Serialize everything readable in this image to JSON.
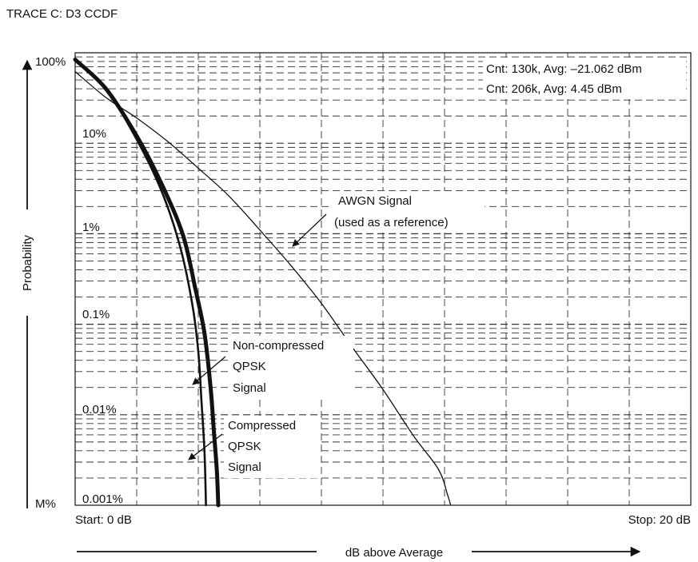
{
  "header": {
    "trace_title": "TRACE C: D3 CCDF"
  },
  "chart_data": {
    "type": "line",
    "title": "TRACE C: D3 CCDF",
    "xlabel": "dB above Average",
    "ylabel": "Probability",
    "x_unit": "dB",
    "xlim": [
      0,
      20
    ],
    "ylim": [
      0.001,
      100
    ],
    "y_scale": "log",
    "x_grid_divisions": 10,
    "grid": true,
    "y_tick_labels": [
      {
        "value": 100,
        "label": "100%"
      },
      {
        "value": 10,
        "label": "10%"
      },
      {
        "value": 1,
        "label": "1%"
      },
      {
        "value": 0.1,
        "label": "0.1%"
      },
      {
        "value": 0.01,
        "label": "0.01%"
      },
      {
        "value": 0.001,
        "label": "0.001%"
      }
    ],
    "marker_label": "M%",
    "start_label": "Start: 0 dB",
    "stop_label": "Stop: 20 dB",
    "readouts": [
      "Cnt: 130k, Avg: –21.062 dBm",
      "Cnt: 206k, Avg:  4.45 dBm"
    ],
    "series": [
      {
        "name": "AWGN Signal (used as a reference)",
        "weight": "thin",
        "x": [
          0,
          1,
          2,
          3,
          4,
          5,
          6,
          7,
          8,
          9,
          10,
          11,
          11.8,
          12.1,
          12.2
        ],
        "y": [
          62,
          32,
          19,
          10.5,
          5.3,
          2.6,
          1.1,
          0.45,
          0.17,
          0.056,
          0.019,
          0.0058,
          0.0025,
          0.0013,
          0.001
        ]
      },
      {
        "name": "Non-compressed QPSK Signal",
        "weight": "bold",
        "x": [
          0,
          1,
          2,
          2.8,
          3.5,
          3.9,
          4.2,
          4.4,
          4.5,
          4.6,
          4.65
        ],
        "y": [
          84,
          40,
          12,
          3.6,
          0.97,
          0.25,
          0.08,
          0.02,
          0.007,
          0.0025,
          0.001
        ]
      },
      {
        "name": "Compressed QPSK Signal",
        "weight": "medium",
        "x": [
          0,
          1,
          2,
          2.8,
          3.4,
          3.8,
          4.0,
          4.1,
          4.2,
          4.25
        ],
        "y": [
          84,
          40,
          11,
          3.0,
          0.74,
          0.17,
          0.05,
          0.015,
          0.004,
          0.001
        ]
      }
    ],
    "annotations": {
      "awgn": [
        "AWGN Signal",
        "(used as a reference)"
      ],
      "non_compressed": [
        "Non-compressed",
        "QPSK",
        "Signal"
      ],
      "compressed": [
        "Compressed",
        "QPSK",
        "Signal"
      ]
    }
  }
}
